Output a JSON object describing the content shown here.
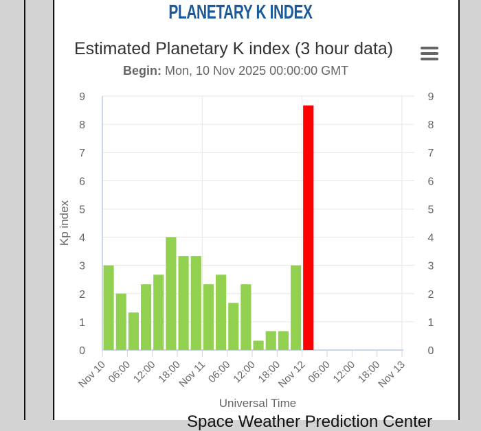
{
  "page": {
    "brand_title": "PLANETARY K INDEX",
    "footer_text": "Space Weather Prediction Center"
  },
  "chart_data": {
    "type": "bar",
    "title": "Estimated Planetary K index (3 hour data)",
    "subtitle_label": "Begin:",
    "subtitle_value": "Mon, 10 Nov 2025 00:00:00 GMT",
    "xlabel": "Universal Time",
    "ylabel": "Kp index",
    "ylim": [
      0,
      9
    ],
    "yticks": [
      0,
      1,
      2,
      3,
      4,
      5,
      6,
      7,
      8,
      9
    ],
    "xticks": [
      "Nov 10",
      "06:00",
      "12:00",
      "18:00",
      "Nov 11",
      "06:00",
      "12:00",
      "18:00",
      "Nov 12",
      "06:00",
      "12:00",
      "18:00",
      "Nov 13"
    ],
    "x_interval_hours": 3,
    "values": [
      3,
      2,
      1.33,
      2.33,
      2.67,
      4,
      3.33,
      3.33,
      2.33,
      2.67,
      1.67,
      2.33,
      0.33,
      0.67,
      0.67,
      3,
      8.67
    ],
    "colors": {
      "normal": "#92d050",
      "storm": "#ff0000"
    },
    "storm_threshold": 5,
    "grid": true,
    "menu_icon": "hamburger-icon"
  }
}
